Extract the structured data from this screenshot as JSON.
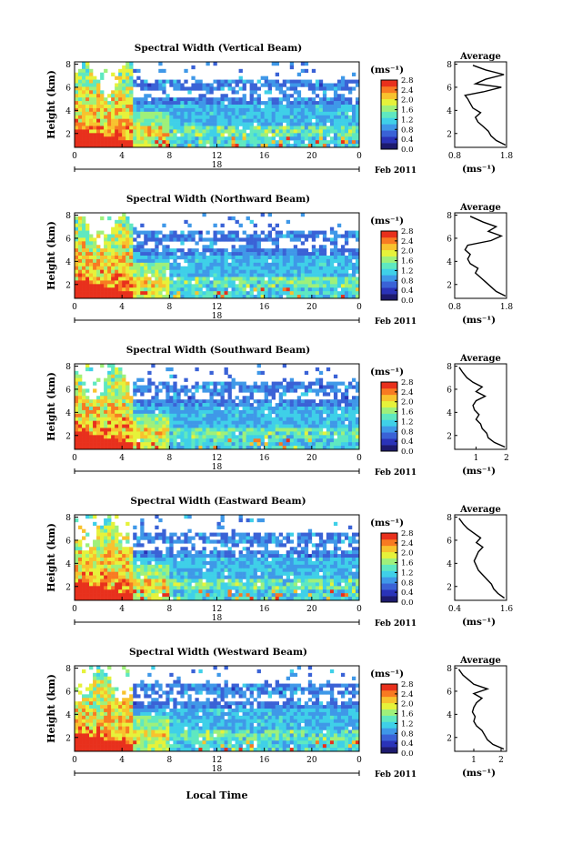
{
  "figure": {
    "xlabel": "Local Time",
    "date_label": "Feb 2011",
    "day_label": "18",
    "colorbar_unit": "(ms⁻¹)",
    "colorbar_ticks": [
      "0.0",
      "0.4",
      "0.8",
      "1.2",
      "1.6",
      "2.0",
      "2.4",
      "2.8"
    ],
    "colormap": [
      "#1d1a6e",
      "#2a33b8",
      "#3a62d6",
      "#3f98e8",
      "#3fd0e8",
      "#5fe8c0",
      "#9ff07a",
      "#e6f23a",
      "#f8c22e",
      "#f87a22",
      "#e8301c"
    ],
    "profile_title": "Average",
    "profile_unit": "(ms⁻¹)"
  },
  "chart_data": [
    {
      "type": "heatmap",
      "title": "Spectral Width (Vertical Beam)",
      "ylabel": "Height (km)",
      "x_ticks": [
        "0",
        "4",
        "8",
        "12",
        "16",
        "20",
        "0"
      ],
      "y_ticks": [
        "2",
        "4",
        "6",
        "8"
      ],
      "xlim": [
        0,
        24
      ],
      "ylim": [
        0.8,
        8.2
      ],
      "profile": {
        "xlim": [
          0.8,
          1.8
        ],
        "x_ticks": [
          "0.8",
          "1.8"
        ],
        "points": [
          [
            1.78,
            1.0
          ],
          [
            1.6,
            1.4
          ],
          [
            1.5,
            1.8
          ],
          [
            1.45,
            2.2
          ],
          [
            1.35,
            2.6
          ],
          [
            1.25,
            3.0
          ],
          [
            1.2,
            3.4
          ],
          [
            1.3,
            3.8
          ],
          [
            1.15,
            4.2
          ],
          [
            1.1,
            4.6
          ],
          [
            1.05,
            5.0
          ],
          [
            1.0,
            5.3
          ],
          [
            1.35,
            5.6
          ],
          [
            1.7,
            6.0
          ],
          [
            1.2,
            6.3
          ],
          [
            1.4,
            6.7
          ],
          [
            1.75,
            7.1
          ],
          [
            1.4,
            7.5
          ],
          [
            1.15,
            7.9
          ]
        ]
      }
    },
    {
      "type": "heatmap",
      "title": "Spectral Width (Northward Beam)",
      "ylabel": "Height (km)",
      "x_ticks": [
        "0",
        "4",
        "8",
        "12",
        "16",
        "20",
        "0"
      ],
      "y_ticks": [
        "2",
        "4",
        "6",
        "8"
      ],
      "xlim": [
        0,
        24
      ],
      "ylim": [
        0.8,
        8.2
      ],
      "profile": {
        "xlim": [
          0.8,
          1.8
        ],
        "x_ticks": [
          "0.8",
          "1.8"
        ],
        "points": [
          [
            1.78,
            1.0
          ],
          [
            1.6,
            1.4
          ],
          [
            1.5,
            1.8
          ],
          [
            1.4,
            2.2
          ],
          [
            1.3,
            2.6
          ],
          [
            1.2,
            3.0
          ],
          [
            1.25,
            3.4
          ],
          [
            1.1,
            3.8
          ],
          [
            1.05,
            4.2
          ],
          [
            1.1,
            4.6
          ],
          [
            1.0,
            5.0
          ],
          [
            1.05,
            5.4
          ],
          [
            1.5,
            5.8
          ],
          [
            1.7,
            6.2
          ],
          [
            1.45,
            6.6
          ],
          [
            1.6,
            7.0
          ],
          [
            1.35,
            7.4
          ],
          [
            1.1,
            7.9
          ]
        ]
      }
    },
    {
      "type": "heatmap",
      "title": "Spectral Width (Southward Beam)",
      "ylabel": "Height (km)",
      "x_ticks": [
        "0",
        "4",
        "8",
        "12",
        "16",
        "20",
        "0"
      ],
      "y_ticks": [
        "2",
        "4",
        "6",
        "8"
      ],
      "xlim": [
        0,
        24
      ],
      "ylim": [
        0.8,
        8.2
      ],
      "profile": {
        "xlim": [
          0.3,
          2.0
        ],
        "x_ticks": [
          "1",
          "2"
        ],
        "points": [
          [
            1.95,
            1.0
          ],
          [
            1.6,
            1.4
          ],
          [
            1.4,
            1.8
          ],
          [
            1.35,
            2.2
          ],
          [
            1.2,
            2.6
          ],
          [
            1.15,
            3.0
          ],
          [
            1.0,
            3.4
          ],
          [
            1.1,
            3.8
          ],
          [
            0.95,
            4.2
          ],
          [
            0.9,
            4.6
          ],
          [
            1.0,
            5.0
          ],
          [
            1.3,
            5.4
          ],
          [
            1.0,
            5.8
          ],
          [
            1.2,
            6.2
          ],
          [
            0.9,
            6.6
          ],
          [
            0.7,
            7.0
          ],
          [
            0.55,
            7.5
          ],
          [
            0.45,
            7.9
          ]
        ]
      }
    },
    {
      "type": "heatmap",
      "title": "Spectral Width (Eastward Beam)",
      "ylabel": "Height (km)",
      "x_ticks": [
        "0",
        "4",
        "8",
        "12",
        "16",
        "20",
        "0"
      ],
      "y_ticks": [
        "2",
        "4",
        "6",
        "8"
      ],
      "xlim": [
        0,
        24
      ],
      "ylim": [
        0.8,
        8.2
      ],
      "profile": {
        "xlim": [
          0.4,
          1.6
        ],
        "x_ticks": [
          "0.4",
          "1.6"
        ],
        "points": [
          [
            1.55,
            1.0
          ],
          [
            1.4,
            1.4
          ],
          [
            1.3,
            1.8
          ],
          [
            1.25,
            2.2
          ],
          [
            1.15,
            2.6
          ],
          [
            1.05,
            3.0
          ],
          [
            0.95,
            3.4
          ],
          [
            0.9,
            3.8
          ],
          [
            0.85,
            4.2
          ],
          [
            0.9,
            4.6
          ],
          [
            0.95,
            5.0
          ],
          [
            1.05,
            5.4
          ],
          [
            0.9,
            5.8
          ],
          [
            1.0,
            6.2
          ],
          [
            0.85,
            6.6
          ],
          [
            0.7,
            7.0
          ],
          [
            0.6,
            7.4
          ],
          [
            0.5,
            7.9
          ]
        ]
      }
    },
    {
      "type": "heatmap",
      "title": "Spectral Width (Westward Beam)",
      "ylabel": "Height (km)",
      "x_ticks": [
        "0",
        "4",
        "8",
        "12",
        "16",
        "20",
        "0"
      ],
      "y_ticks": [
        "2",
        "4",
        "6",
        "8"
      ],
      "xlim": [
        0,
        24
      ],
      "ylim": [
        0.8,
        8.2
      ],
      "profile": {
        "xlim": [
          0.3,
          2.2
        ],
        "x_ticks": [
          "1",
          "2"
        ],
        "points": [
          [
            2.1,
            1.0
          ],
          [
            1.7,
            1.4
          ],
          [
            1.5,
            1.8
          ],
          [
            1.4,
            2.2
          ],
          [
            1.3,
            2.6
          ],
          [
            1.1,
            3.0
          ],
          [
            1.0,
            3.4
          ],
          [
            1.05,
            3.8
          ],
          [
            0.95,
            4.2
          ],
          [
            1.0,
            4.6
          ],
          [
            1.1,
            5.0
          ],
          [
            1.3,
            5.4
          ],
          [
            1.0,
            5.8
          ],
          [
            1.5,
            6.2
          ],
          [
            1.0,
            6.6
          ],
          [
            0.8,
            7.0
          ],
          [
            0.6,
            7.4
          ],
          [
            0.45,
            7.9
          ]
        ]
      }
    }
  ]
}
